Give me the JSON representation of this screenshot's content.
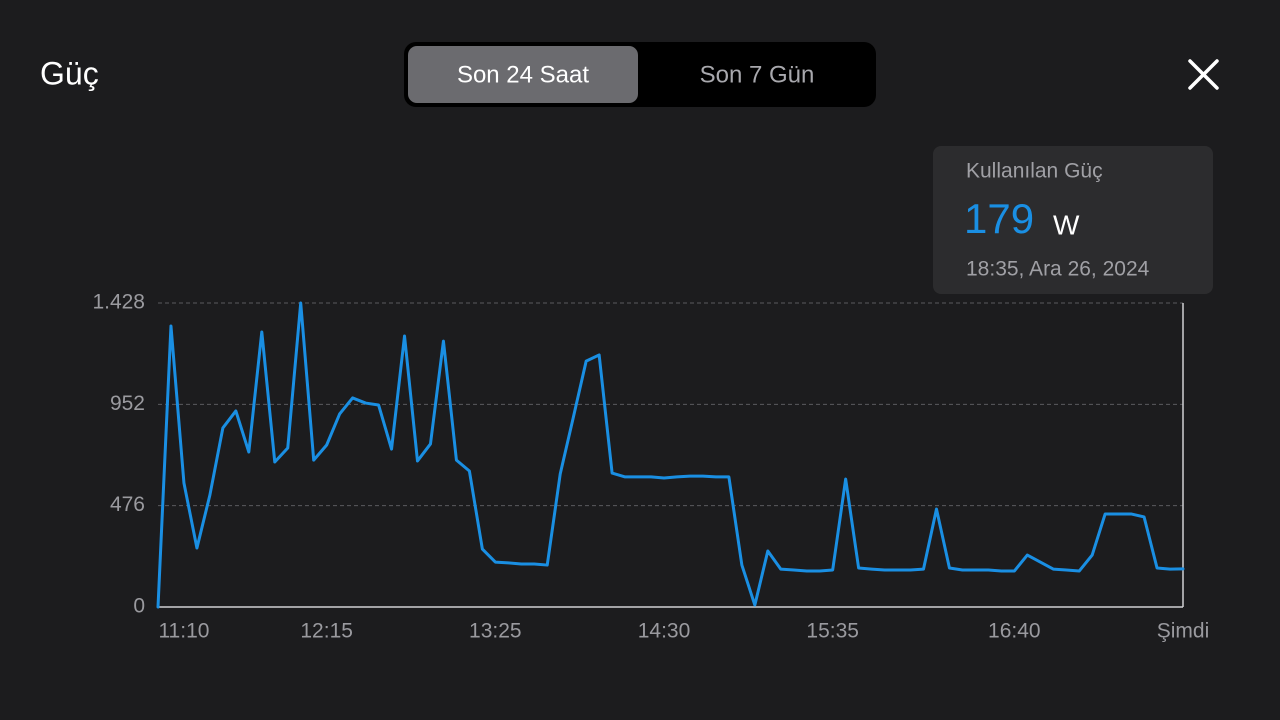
{
  "header": {
    "title": "Güç",
    "tabs": [
      "Son 24 Saat",
      "Son 7 Gün"
    ],
    "selected_tab": 0
  },
  "tooltip": {
    "title": "Kullanılan Güç",
    "value": 179,
    "unit": "W",
    "time": "18:35, Ara 26, 2024"
  },
  "chart_data": {
    "type": "line",
    "color": "#1a8fe3",
    "grid": true,
    "categories": [
      null,
      null,
      "11:10",
      null,
      null,
      null,
      null,
      null,
      null,
      null,
      null,
      null,
      null,
      "12:15",
      null,
      null,
      null,
      null,
      null,
      null,
      null,
      null,
      null,
      null,
      null,
      null,
      "13:25",
      null,
      null,
      null,
      null,
      null,
      null,
      null,
      null,
      null,
      null,
      null,
      null,
      "14:30",
      null,
      null,
      null,
      null,
      null,
      null,
      null,
      null,
      null,
      null,
      null,
      null,
      "15:35",
      null,
      null,
      null,
      null,
      null,
      null,
      null,
      null,
      null,
      null,
      null,
      null,
      null,
      "16:40",
      null,
      null,
      null,
      null,
      null,
      null,
      null,
      null,
      null,
      null,
      null,
      null,
      "Şimdi"
    ],
    "values": [
      0,
      1320,
      582,
      277,
      526,
      841,
      921,
      728,
      1292,
      681,
      747,
      1428,
      690,
      761,
      907,
      982,
      958,
      949,
      742,
      1273,
      686,
      766,
      1249,
      690,
      639,
      272,
      211,
      207,
      202,
      202,
      197,
      625,
      888,
      1155,
      1184,
      629,
      611,
      611,
      611,
      606,
      611,
      615,
      615,
      611,
      611,
      197,
      9,
      263,
      178,
      174,
      169,
      169,
      174,
      601,
      183,
      178,
      174,
      174,
      174,
      178,
      460,
      183,
      174,
      174,
      174,
      169,
      169,
      244,
      211,
      178,
      174,
      169,
      244,
      437,
      437,
      437,
      423,
      183,
      178,
      179
    ],
    "ylim": [
      0,
      1428
    ],
    "yticks": [
      0,
      476,
      952,
      {
        "value": 1428,
        "label": "1.428"
      }
    ]
  }
}
